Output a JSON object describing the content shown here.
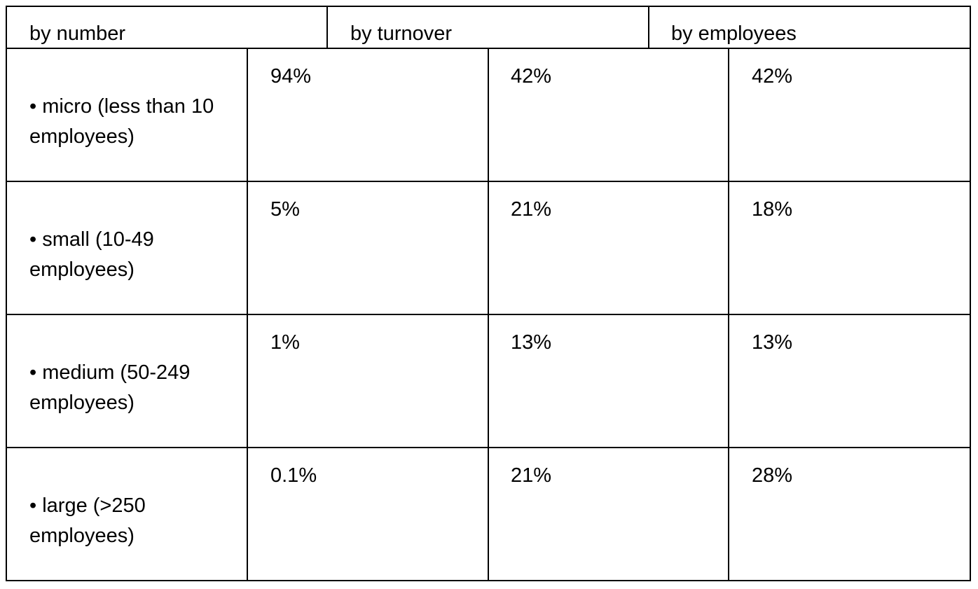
{
  "table": {
    "headers": [
      "by number",
      "by turnover",
      "by employees"
    ],
    "rows": [
      {
        "label": "• micro (less than 10 employees)",
        "by_number": "94%",
        "by_turnover": "42%",
        "by_employees": "42%"
      },
      {
        "label": "• small (10-49 employees)",
        "by_number": "5%",
        "by_turnover": "21%",
        "by_employees": "18%"
      },
      {
        "label": "• medium (50-249 employees)",
        "by_number": "1%",
        "by_turnover": "13%",
        "by_employees": "13%"
      },
      {
        "label": "• large (>250 employees)",
        "by_number": "0.1%",
        "by_turnover": "21%",
        "by_employees": "28%"
      }
    ]
  }
}
